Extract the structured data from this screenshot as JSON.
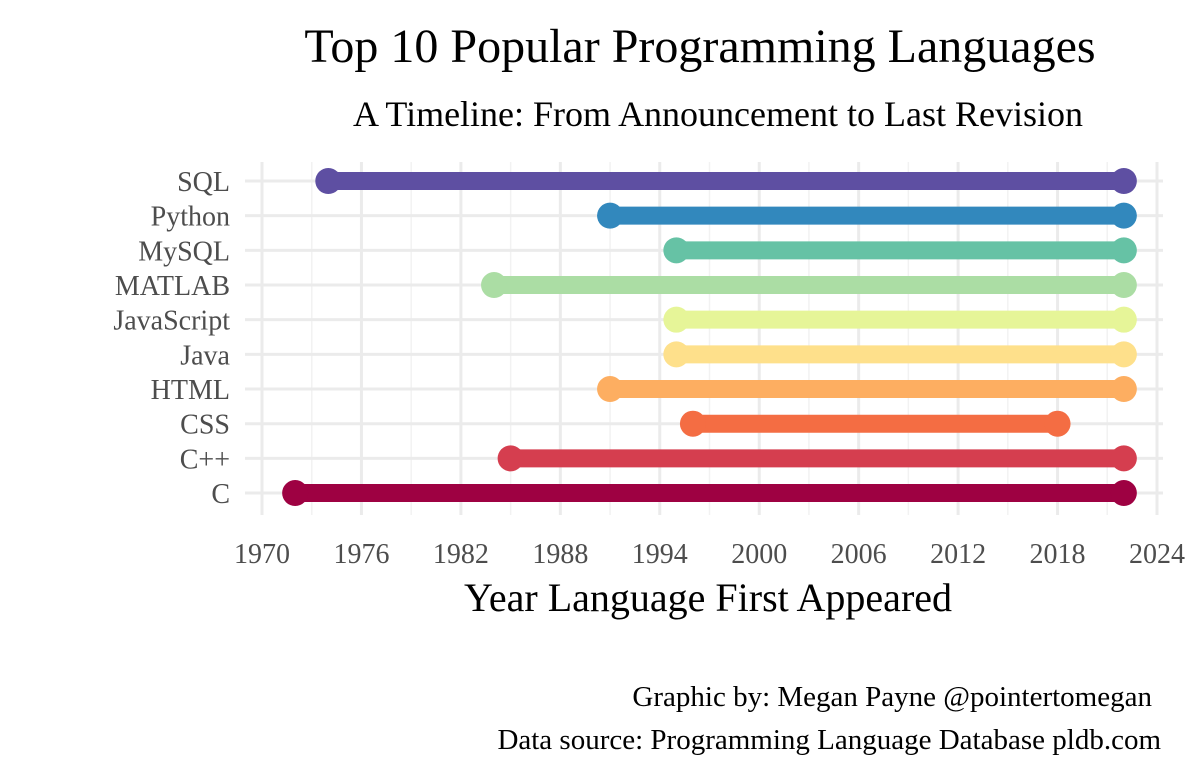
{
  "chart_data": {
    "type": "dumbbell",
    "title": "Top 10 Popular Programming Languages",
    "subtitle": "A Timeline: From Announcement to Last Revision",
    "xlabel": "Year Language First Appeared",
    "ylabel": "",
    "xlim": [
      1970,
      2024
    ],
    "xticks": [
      1970,
      1976,
      1982,
      1988,
      1994,
      2000,
      2006,
      2012,
      2018,
      2024
    ],
    "grid": true,
    "legend": "none",
    "series": [
      {
        "label": "SQL",
        "start": 1974,
        "end": 2022,
        "color": "#5E4FA2"
      },
      {
        "label": "Python",
        "start": 1991,
        "end": 2022,
        "color": "#3288BD"
      },
      {
        "label": "MySQL",
        "start": 1995,
        "end": 2022,
        "color": "#66C2A5"
      },
      {
        "label": "MATLAB",
        "start": 1984,
        "end": 2022,
        "color": "#ABDDA4"
      },
      {
        "label": "JavaScript",
        "start": 1995,
        "end": 2022,
        "color": "#E6F598"
      },
      {
        "label": "Java",
        "start": 1995,
        "end": 2022,
        "color": "#FEE08B"
      },
      {
        "label": "HTML",
        "start": 1991,
        "end": 2022,
        "color": "#FDAE61"
      },
      {
        "label": "CSS",
        "start": 1996,
        "end": 2018,
        "color": "#F46D43"
      },
      {
        "label": "C++",
        "start": 1985,
        "end": 2022,
        "color": "#D53E4F"
      },
      {
        "label": "C",
        "start": 1972,
        "end": 2022,
        "color": "#9E0142"
      }
    ]
  },
  "caption": {
    "line1": "Graphic by: Megan Payne @pointertomegan",
    "line2": "Data source: Programming Language Database pldb.com"
  }
}
